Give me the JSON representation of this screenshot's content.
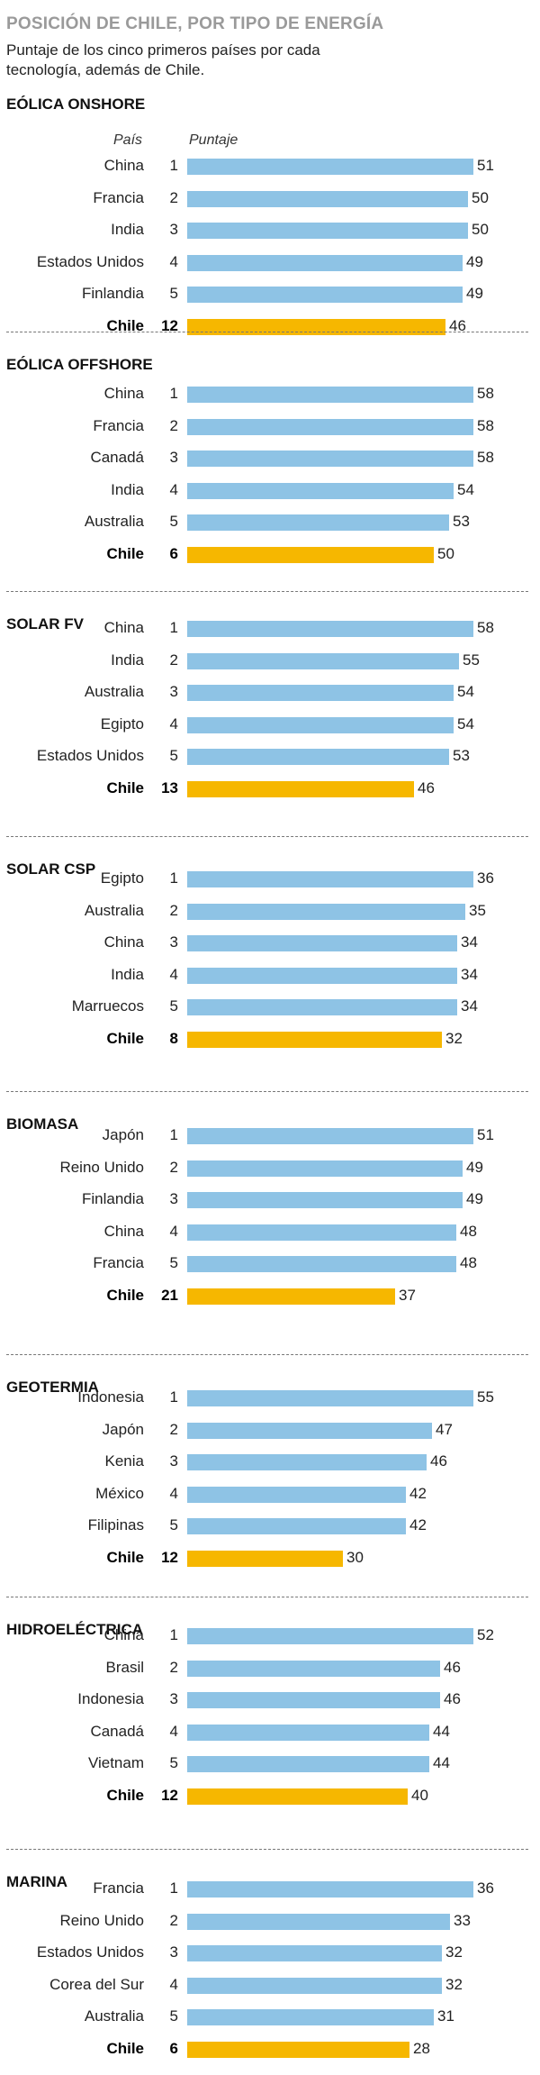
{
  "header": {
    "title": "POSICIÓN DE CHILE, POR TIPO DE ENERGÍA",
    "subtitle": "Puntaje de los cinco primeros países por cada tecnología, además de Chile."
  },
  "labels": {
    "country_col": "País",
    "score_col": "Puntaje"
  },
  "colors": {
    "bar": "#8ec3e5",
    "chile_bar": "#f6b700"
  },
  "chart_data": {
    "type": "bar",
    "title": "POSICIÓN DE CHILE, POR TIPO DE ENERGÍA",
    "xlabel": "Puntaje",
    "ylabel": "País",
    "sections": [
      {
        "name": "EÓLICA ONSHORE",
        "rows": [
          {
            "country": "China",
            "rank": "1",
            "score": 51
          },
          {
            "country": "Francia",
            "rank": "2",
            "score": 50
          },
          {
            "country": "India",
            "rank": "3",
            "score": 50
          },
          {
            "country": "Estados Unidos",
            "rank": "4",
            "score": 49
          },
          {
            "country": "Finlandia",
            "rank": "5",
            "score": 49
          },
          {
            "country": "Chile",
            "rank": "12",
            "score": 46,
            "highlight": true
          }
        ]
      },
      {
        "name": "EÓLICA OFFSHORE",
        "rows": [
          {
            "country": "China",
            "rank": "1",
            "score": 58
          },
          {
            "country": "Francia",
            "rank": "2",
            "score": 58
          },
          {
            "country": "Canadá",
            "rank": "3",
            "score": 58
          },
          {
            "country": "India",
            "rank": "4",
            "score": 54
          },
          {
            "country": "Australia",
            "rank": "5",
            "score": 53
          },
          {
            "country": "Chile",
            "rank": "6",
            "score": 50,
            "highlight": true
          }
        ]
      },
      {
        "name": "SOLAR FV",
        "rows": [
          {
            "country": "China",
            "rank": "1",
            "score": 58
          },
          {
            "country": "India",
            "rank": "2",
            "score": 55
          },
          {
            "country": "Australia",
            "rank": "3",
            "score": 54
          },
          {
            "country": "Egipto",
            "rank": "4",
            "score": 54
          },
          {
            "country": "Estados Unidos",
            "rank": "5",
            "score": 53
          },
          {
            "country": "Chile",
            "rank": "13",
            "score": 46,
            "highlight": true
          }
        ]
      },
      {
        "name": "SOLAR CSP",
        "rows": [
          {
            "country": "Egipto",
            "rank": "1",
            "score": 36
          },
          {
            "country": "Australia",
            "rank": "2",
            "score": 35
          },
          {
            "country": "China",
            "rank": "3",
            "score": 34
          },
          {
            "country": "India",
            "rank": "4",
            "score": 34
          },
          {
            "country": "Marruecos",
            "rank": "5",
            "score": 34
          },
          {
            "country": "Chile",
            "rank": "8",
            "score": 32,
            "highlight": true
          }
        ]
      },
      {
        "name": "BIOMASA",
        "rows": [
          {
            "country": "Japón",
            "rank": "1",
            "score": 51
          },
          {
            "country": "Reino Unido",
            "rank": "2",
            "score": 49
          },
          {
            "country": "Finlandia",
            "rank": "3",
            "score": 49
          },
          {
            "country": "China",
            "rank": "4",
            "score": 48
          },
          {
            "country": "Francia",
            "rank": "5",
            "score": 48
          },
          {
            "country": "Chile",
            "rank": "21",
            "score": 37,
            "highlight": true
          }
        ]
      },
      {
        "name": "GEOTERMIA",
        "rows": [
          {
            "country": "Indonesia",
            "rank": "1",
            "score": 55
          },
          {
            "country": "Japón",
            "rank": "2",
            "score": 47
          },
          {
            "country": "Kenia",
            "rank": "3",
            "score": 46
          },
          {
            "country": "México",
            "rank": "4",
            "score": 42
          },
          {
            "country": "Filipinas",
            "rank": "5",
            "score": 42
          },
          {
            "country": "Chile",
            "rank": "12",
            "score": 30,
            "highlight": true
          }
        ]
      },
      {
        "name": "HIDROELÉCTRICA",
        "rows": [
          {
            "country": "China",
            "rank": "1",
            "score": 52
          },
          {
            "country": "Brasil",
            "rank": "2",
            "score": 46
          },
          {
            "country": "Indonesia",
            "rank": "3",
            "score": 46
          },
          {
            "country": "Canadá",
            "rank": "4",
            "score": 44
          },
          {
            "country": "Vietnam",
            "rank": "5",
            "score": 44
          },
          {
            "country": "Chile",
            "rank": "12",
            "score": 40,
            "highlight": true
          }
        ]
      },
      {
        "name": "MARINA",
        "rows": [
          {
            "country": "Francia",
            "rank": "1",
            "score": 36
          },
          {
            "country": "Reino Unido",
            "rank": "2",
            "score": 33
          },
          {
            "country": "Estados Unidos",
            "rank": "3",
            "score": 32
          },
          {
            "country": "Corea del Sur",
            "rank": "4",
            "score": 32
          },
          {
            "country": "Australia",
            "rank": "5",
            "score": 31
          },
          {
            "country": "Chile",
            "rank": "6",
            "score": 28,
            "highlight": true
          }
        ]
      }
    ]
  }
}
